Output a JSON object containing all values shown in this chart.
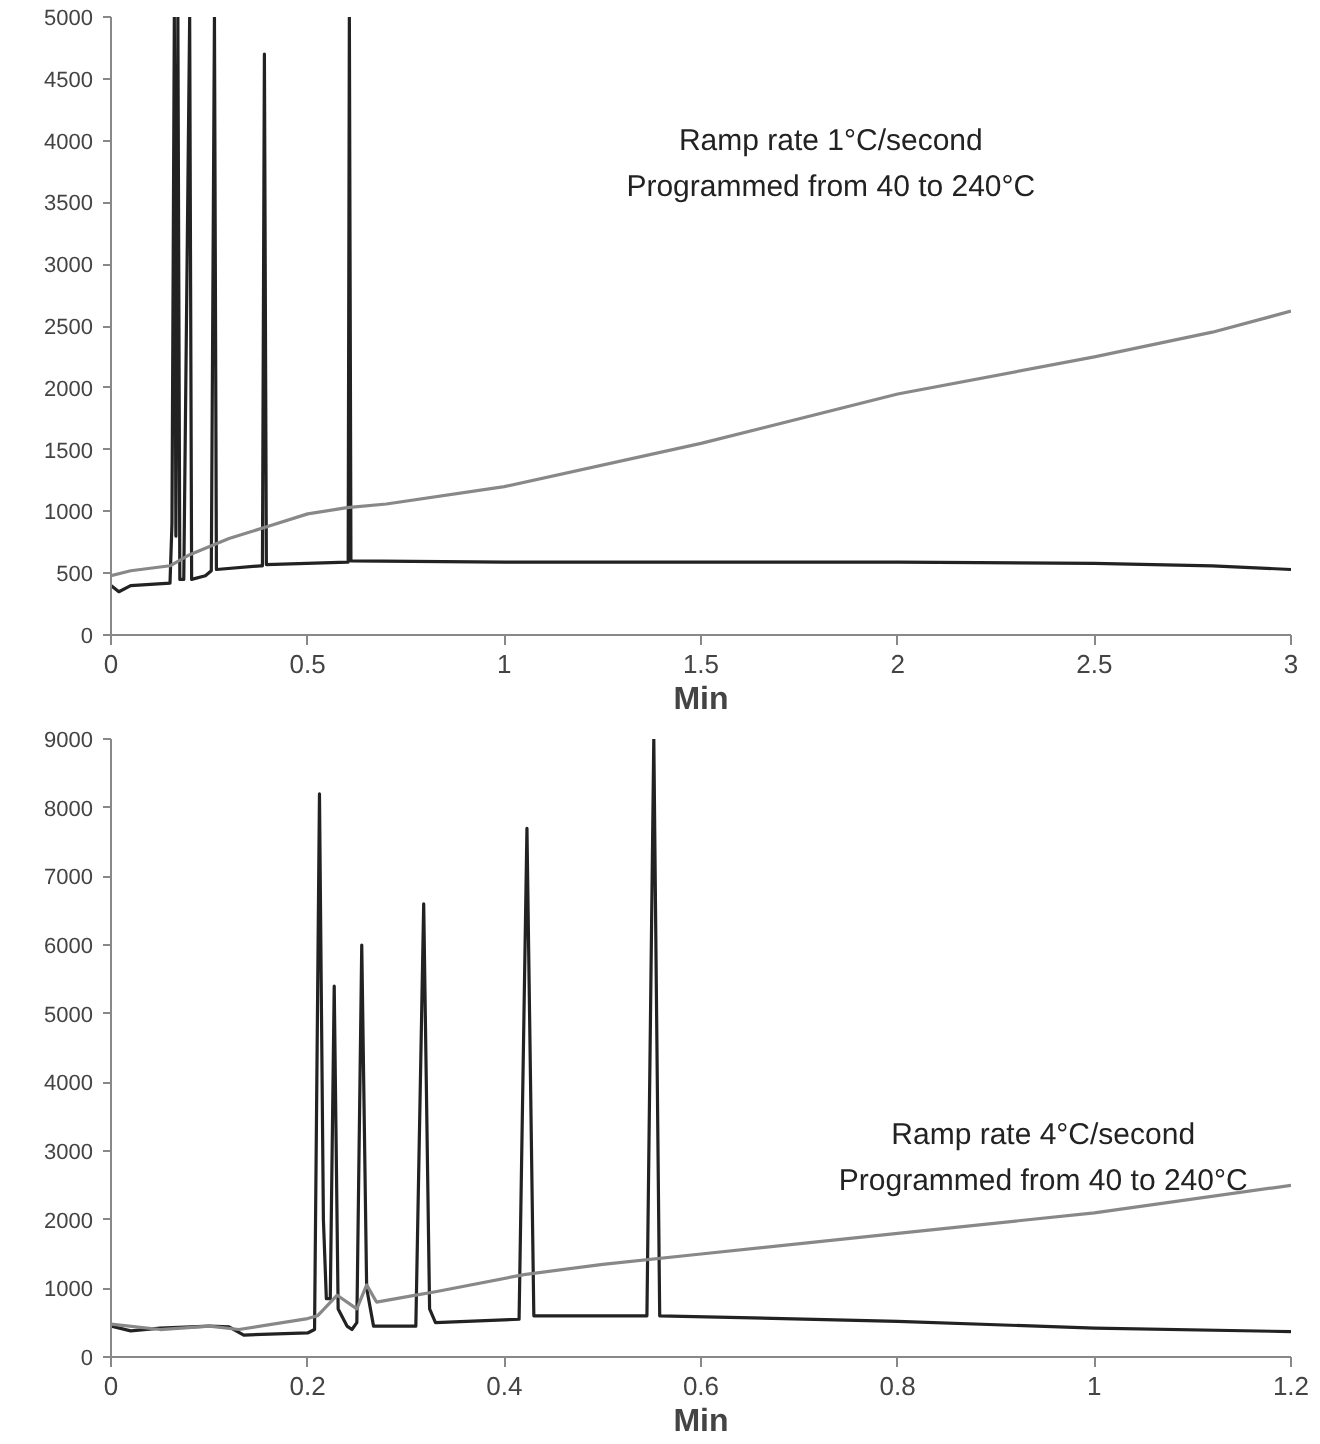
{
  "chart_data": [
    {
      "type": "line",
      "xlabel": "Min",
      "annotations": [
        "Ramp rate 1°C/second",
        "Programmed from 40 to 240°C"
      ],
      "xlim": [
        0,
        3
      ],
      "xticks": [
        0,
        0.5,
        1,
        1.5,
        2,
        2.5,
        3
      ],
      "ylim": [
        0,
        5000
      ],
      "yticks": [
        0,
        500,
        1000,
        1500,
        2000,
        2500,
        3000,
        3500,
        4000,
        4500,
        5000
      ],
      "series": [
        {
          "color": "#222222",
          "x": [
            0,
            0.02,
            0.05,
            0.1,
            0.15,
            0.155,
            0.161,
            0.165,
            0.17,
            0.175,
            0.185,
            0.2,
            0.205,
            0.24,
            0.255,
            0.263,
            0.268,
            0.38,
            0.385,
            0.39,
            0.395,
            0.6,
            0.603,
            0.606,
            0.61,
            1,
            1.5,
            2,
            2.5,
            2.8,
            3
          ],
          "values": [
            400,
            350,
            400,
            410,
            420,
            900,
            5000,
            800,
            5000,
            450,
            450,
            5000,
            450,
            480,
            520,
            5000,
            530,
            560,
            560,
            4700,
            570,
            590,
            590,
            5000,
            600,
            590,
            590,
            590,
            580,
            560,
            530
          ]
        },
        {
          "color": "#888888",
          "x": [
            0,
            0.05,
            0.15,
            0.2,
            0.3,
            0.4,
            0.5,
            0.6,
            0.7,
            1,
            1.5,
            2,
            2.5,
            2.8,
            3
          ],
          "values": [
            480,
            520,
            560,
            650,
            780,
            880,
            980,
            1030,
            1060,
            1200,
            1550,
            1950,
            2250,
            2450,
            2620
          ]
        }
      ]
    },
    {
      "type": "line",
      "xlabel": "Min",
      "annotations": [
        "Ramp rate 4°C/second",
        "Programmed from 40 to 240°C"
      ],
      "xlim": [
        0,
        1.2
      ],
      "xticks": [
        0,
        0.2,
        0.4,
        0.6,
        0.8,
        1,
        1.2
      ],
      "ylim": [
        0,
        9000
      ],
      "yticks": [
        0,
        1000,
        2000,
        3000,
        4000,
        5000,
        6000,
        7000,
        8000,
        9000
      ],
      "series": [
        {
          "color": "#222222",
          "x": [
            0,
            0.02,
            0.05,
            0.1,
            0.12,
            0.135,
            0.2,
            0.207,
            0.212,
            0.216,
            0.219,
            0.223,
            0.227,
            0.231,
            0.24,
            0.245,
            0.25,
            0.255,
            0.26,
            0.267,
            0.31,
            0.318,
            0.324,
            0.33,
            0.415,
            0.423,
            0.43,
            0.545,
            0.552,
            0.558,
            0.8,
            1,
            1.2
          ],
          "values": [
            450,
            380,
            420,
            450,
            440,
            320,
            350,
            400,
            8200,
            2000,
            850,
            850,
            5400,
            700,
            450,
            400,
            500,
            6000,
            1000,
            450,
            450,
            6600,
            700,
            500,
            550,
            7700,
            600,
            600,
            9000,
            600,
            520,
            420,
            370
          ]
        },
        {
          "color": "#888888",
          "x": [
            0,
            0.05,
            0.1,
            0.13,
            0.2,
            0.21,
            0.23,
            0.25,
            0.26,
            0.27,
            0.31,
            0.33,
            0.42,
            0.5,
            0.6,
            0.8,
            1,
            1.2
          ],
          "values": [
            480,
            400,
            450,
            400,
            560,
            600,
            900,
            700,
            1050,
            800,
            900,
            950,
            1200,
            1350,
            1500,
            1800,
            2100,
            2500
          ]
        }
      ]
    }
  ]
}
